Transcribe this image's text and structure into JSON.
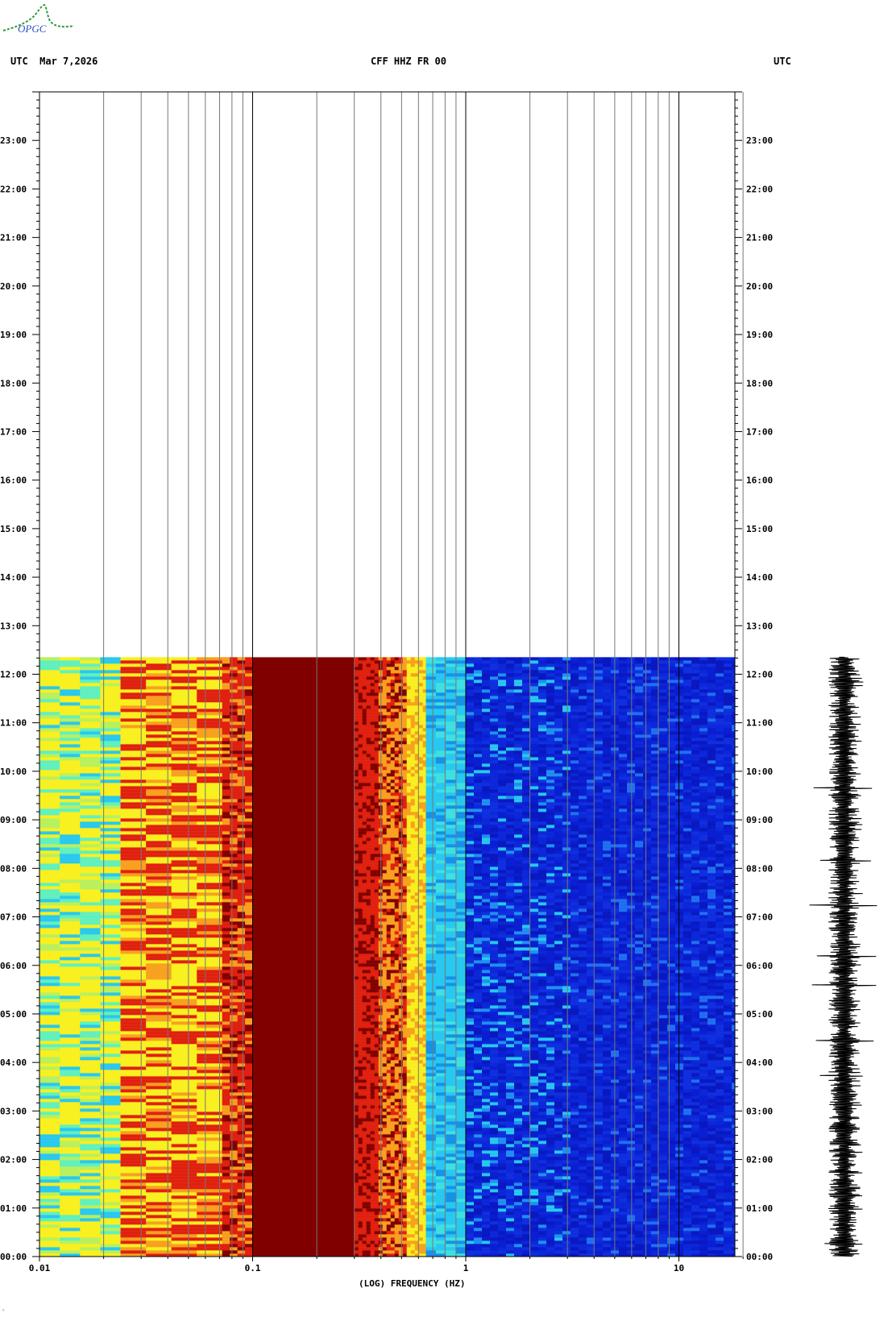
{
  "header": {
    "left": "UTC  Mar 7,2026",
    "center": "CFF HHZ FR 00",
    "right": "UTC"
  },
  "logo": {
    "text": "OPGC",
    "color": "#2e9a3a"
  },
  "chart_data": {
    "type": "heatmap",
    "title": "CFF HHZ FR 00",
    "xlabel": "(LOG) FREQUENCY (HZ)",
    "x_scale": "log",
    "xlim": [
      0.01,
      25
    ],
    "x_ticks": [
      {
        "value": 0.01,
        "label": "0.01"
      },
      {
        "value": 0.1,
        "label": "0.1"
      },
      {
        "value": 1,
        "label": "1"
      },
      {
        "value": 10,
        "label": "10"
      }
    ],
    "y_ticks": [
      "00:00",
      "01:00",
      "02:00",
      "03:00",
      "04:00",
      "05:00",
      "06:00",
      "07:00",
      "08:00",
      "09:00",
      "10:00",
      "11:00",
      "12:00",
      "13:00",
      "14:00",
      "15:00",
      "16:00",
      "17:00",
      "18:00",
      "19:00",
      "20:00",
      "21:00",
      "22:00",
      "23:00"
    ],
    "ylim_hours": [
      0,
      24
    ],
    "data_end_hour": 12.35,
    "colors": {
      "low": "#0a1ed2",
      "mid": "#28c8f0",
      "high_yellow": "#f8f020",
      "high_orange": "#f8a020",
      "red": "#e02010",
      "saturated": "#800000"
    },
    "bands": [
      {
        "from": 0.01,
        "to": 0.024,
        "level": "yellow-cyan"
      },
      {
        "from": 0.024,
        "to": 0.072,
        "level": "yellow-red"
      },
      {
        "from": 0.072,
        "to": 0.1,
        "level": "red"
      },
      {
        "from": 0.1,
        "to": 0.3,
        "level": "saturated"
      },
      {
        "from": 0.3,
        "to": 0.65,
        "level": "red-orange-yellow"
      },
      {
        "from": 0.65,
        "to": 1.0,
        "level": "cyan"
      },
      {
        "from": 1.0,
        "to": 25,
        "level": "blue"
      }
    ]
  }
}
